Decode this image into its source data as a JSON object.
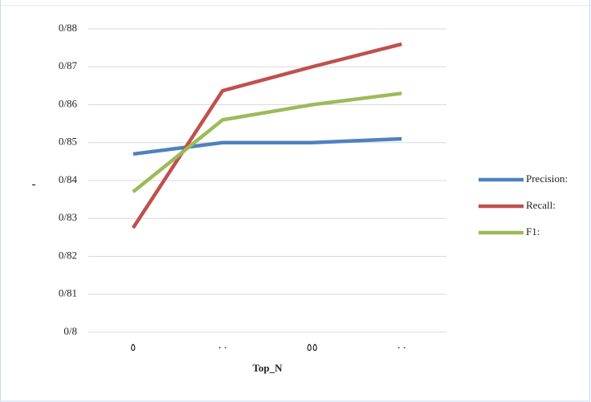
{
  "chart_data": {
    "type": "line",
    "x_label": "Top_N",
    "y_label": "ـ",
    "categories": [
      "٥",
      "٠٠",
      "٥٥",
      "٠٠"
    ],
    "series": [
      {
        "name": "Precision:",
        "color": "#4f81bd",
        "values": [
          0.847,
          0.85,
          0.85,
          0.851
        ]
      },
      {
        "name": "Recall:",
        "color": "#c0504d",
        "values": [
          0.8275,
          0.8637,
          0.87,
          0.876
        ]
      },
      {
        "name": "F1:",
        "color": "#9bbb59",
        "values": [
          0.837,
          0.856,
          0.86,
          0.863
        ]
      }
    ],
    "ylim": [
      0.8,
      0.88
    ],
    "yticks": [
      {
        "value": 0.8,
        "label": "0/8"
      },
      {
        "value": 0.81,
        "label": "0/81"
      },
      {
        "value": 0.82,
        "label": "0/82"
      },
      {
        "value": 0.83,
        "label": "0/83"
      },
      {
        "value": 0.84,
        "label": "0/84"
      },
      {
        "value": 0.85,
        "label": "0/85"
      },
      {
        "value": 0.86,
        "label": "0/86"
      },
      {
        "value": 0.87,
        "label": "0/87"
      },
      {
        "value": 0.88,
        "label": "0/88"
      }
    ],
    "grid": true,
    "legend": "right"
  }
}
